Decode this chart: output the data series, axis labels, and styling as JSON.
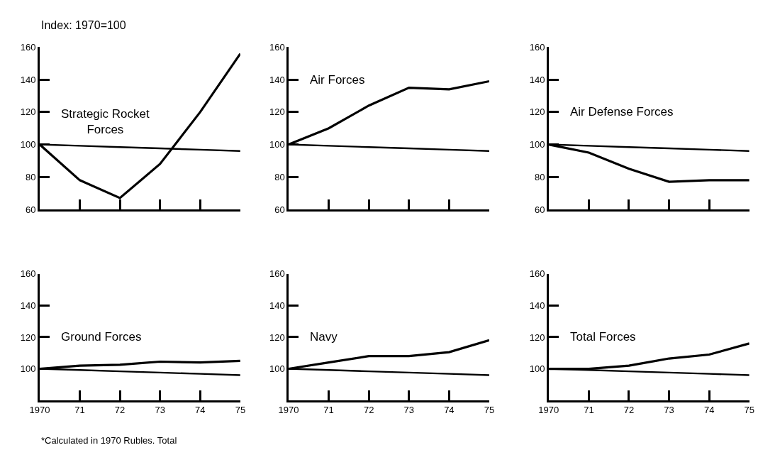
{
  "chart_data": [
    {
      "type": "line",
      "title": "Strategic Rocket Forces",
      "ylabel": "Index: 1970=100",
      "categories": [
        null,
        null,
        null,
        null,
        null,
        null
      ],
      "tick_labels": "y",
      "ylim": [
        60,
        160
      ],
      "yticks": [
        60,
        80,
        100,
        120,
        140,
        160
      ],
      "marker": "none",
      "line_style": "solid",
      "series": [
        {
          "color": "#000000",
          "values": [
            100,
            78,
            67,
            88,
            120,
            156
          ]
        },
        {
          "color": "#000000",
          "values": [
            100,
            99.2,
            98.4,
            97.6,
            96.8,
            96
          ]
        }
      ]
    },
    {
      "type": "line",
      "title": "Air Forces",
      "categories": [
        null,
        null,
        null,
        null,
        null,
        null
      ],
      "tick_labels": "y",
      "ylim": [
        60,
        160
      ],
      "yticks": [
        60,
        80,
        100,
        120,
        140,
        160
      ],
      "marker": "none",
      "line_style": "solid",
      "series": [
        {
          "color": "#000000",
          "values": [
            100,
            110,
            124,
            135,
            134,
            139
          ]
        },
        {
          "color": "#000000",
          "values": [
            100,
            99.2,
            98.4,
            97.6,
            96.8,
            96
          ]
        }
      ]
    },
    {
      "type": "line",
      "title": "Air Defense Forces",
      "categories": [
        null,
        null,
        null,
        null,
        null,
        null
      ],
      "tick_labels": "y",
      "ylim": [
        60,
        160
      ],
      "yticks": [
        60,
        80,
        100,
        120,
        140,
        160
      ],
      "marker": "none",
      "line_style": "solid",
      "series": [
        {
          "color": "#000000",
          "values": [
            100,
            95,
            85,
            77,
            78,
            78
          ]
        },
        {
          "color": "#000000",
          "values": [
            100,
            99.2,
            98.4,
            97.6,
            96.8,
            96
          ]
        }
      ]
    },
    {
      "type": "line",
      "title": "Ground Forces",
      "annotations": [
        "*Calculated in 1970 Rubles. Total"
      ],
      "x": [
        1970,
        1971,
        1972,
        1973,
        1974,
        1975
      ],
      "xlim": [
        1970,
        1975
      ],
      "xticks": [
        {
          "value": 1970,
          "label": "1970"
        },
        {
          "value": 1971,
          "label": "71"
        },
        {
          "value": 1972,
          "label": "72"
        },
        {
          "value": 1973,
          "label": "73"
        },
        {
          "value": 1974,
          "label": "74"
        },
        {
          "value": 1975,
          "label": "75"
        }
      ],
      "ylim": [
        80,
        160
      ],
      "yticks": [
        100,
        120,
        140,
        160
      ],
      "marker": "none",
      "line_style": "solid",
      "series": [
        {
          "color": "#000000",
          "values": [
            100,
            102,
            102.5,
            104.5,
            104,
            105
          ]
        },
        {
          "color": "#000000",
          "values": [
            100,
            99.2,
            98.4,
            97.6,
            96.8,
            96
          ]
        }
      ]
    },
    {
      "type": "line",
      "title": "Navy",
      "x": [
        1970,
        1971,
        1972,
        1973,
        1974,
        1975
      ],
      "xlim": [
        1970,
        1975
      ],
      "xticks": [
        {
          "value": 1970,
          "label": "1970"
        },
        {
          "value": 1971,
          "label": "71"
        },
        {
          "value": 1972,
          "label": "72"
        },
        {
          "value": 1973,
          "label": "73"
        },
        {
          "value": 1974,
          "label": "74"
        },
        {
          "value": 1975,
          "label": "75"
        }
      ],
      "ylim": [
        80,
        160
      ],
      "yticks": [
        100,
        120,
        140,
        160
      ],
      "marker": "none",
      "line_style": "solid",
      "series": [
        {
          "color": "#000000",
          "values": [
            100,
            104,
            108,
            108,
            110.5,
            118
          ]
        },
        {
          "color": "#000000",
          "values": [
            100,
            99.2,
            98.4,
            97.6,
            96.8,
            96
          ]
        }
      ]
    },
    {
      "type": "line",
      "title": "Total Forces",
      "x": [
        1970,
        1971,
        1972,
        1973,
        1974,
        1975
      ],
      "xlim": [
        1970,
        1975
      ],
      "xticks": [
        {
          "value": 1970,
          "label": "1970"
        },
        {
          "value": 1971,
          "label": "71"
        },
        {
          "value": 1972,
          "label": "72"
        },
        {
          "value": 1973,
          "label": "73"
        },
        {
          "value": 1974,
          "label": "74"
        },
        {
          "value": 1975,
          "label": "75"
        }
      ],
      "ylim": [
        80,
        160
      ],
      "yticks": [
        100,
        120,
        140,
        160
      ],
      "marker": "none",
      "line_style": "solid",
      "series": [
        {
          "color": "#000000",
          "values": [
            100,
            100,
            102,
            106.5,
            109,
            116
          ]
        },
        {
          "color": "#000000",
          "values": [
            100,
            99.2,
            98.4,
            97.6,
            96.8,
            96
          ]
        }
      ]
    }
  ]
}
